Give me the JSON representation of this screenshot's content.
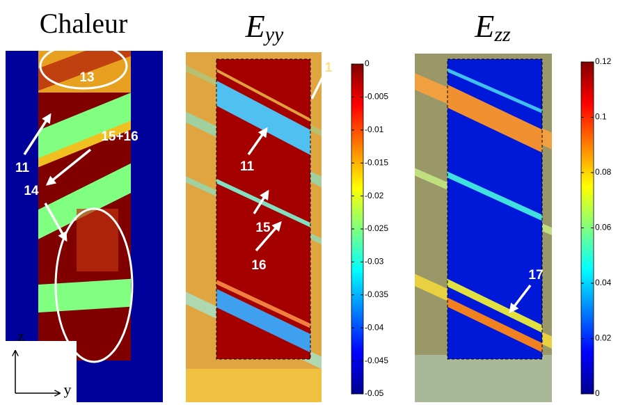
{
  "panels": [
    {
      "title": "Chaleur",
      "annotations": [
        "13",
        "11",
        "15+16",
        "14"
      ],
      "axes": [
        "z",
        "y"
      ]
    },
    {
      "title": {
        "main": "E",
        "sub": "yy"
      },
      "annotations": [
        "1",
        "11",
        "15",
        "16"
      ],
      "colorbar": {
        "lim": [
          -0.05,
          0
        ],
        "ticks": [
          0,
          -0.005,
          -0.01,
          -0.015,
          -0.02,
          -0.025,
          -0.03,
          -0.035,
          -0.04,
          -0.045,
          -0.05
        ]
      }
    },
    {
      "title": {
        "main": "E",
        "sub": "zz"
      },
      "annotations": [
        "17"
      ],
      "colorbar": {
        "lim": [
          0,
          0.12
        ],
        "ticks": [
          0.12,
          0.1,
          0.08,
          0.06,
          0.04,
          0.02,
          0
        ]
      }
    }
  ]
}
